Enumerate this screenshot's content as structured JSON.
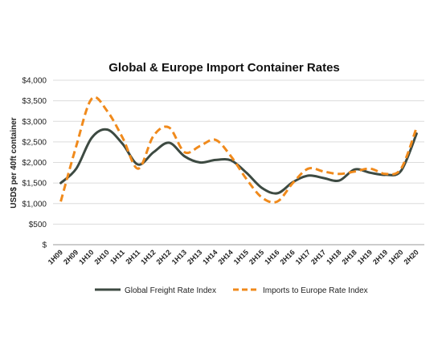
{
  "chart_data": {
    "type": "line",
    "title": "Global & Europe Import Container Rates",
    "xlabel": "",
    "ylabel": "USD$ per 40ft container",
    "ylim": [
      0,
      4000
    ],
    "yticks": [
      "$",
      "$500",
      "$1,000",
      "$1,500",
      "$2,000",
      "$2,500",
      "$3,000",
      "$3,500",
      "$4,000"
    ],
    "ytick_values": [
      0,
      500,
      1000,
      1500,
      2000,
      2500,
      3000,
      3500,
      4000
    ],
    "categories": [
      "1H09",
      "2H09",
      "1H10",
      "2H10",
      "1H11",
      "2H11",
      "1H12",
      "2H12",
      "1H13",
      "2H13",
      "1H14",
      "2H14",
      "1H15",
      "2H15",
      "1H16",
      "2H16",
      "1H17",
      "2H17",
      "1H18",
      "2H18",
      "1H19",
      "2H19",
      "1H20",
      "2H20"
    ],
    "series": [
      {
        "name": "Global Freight Rate Index",
        "color": "#3d4a42",
        "style": "solid",
        "values": [
          1500,
          1850,
          2600,
          2800,
          2450,
          1950,
          2250,
          2480,
          2150,
          2000,
          2060,
          2050,
          1750,
          1380,
          1250,
          1520,
          1680,
          1620,
          1560,
          1830,
          1750,
          1700,
          1800,
          2700
        ]
      },
      {
        "name": "Imports to Europe Rate Index",
        "color": "#f08a1c",
        "style": "dashed",
        "values": [
          1050,
          2400,
          3550,
          3250,
          2600,
          1850,
          2650,
          2850,
          2250,
          2400,
          2550,
          2150,
          1600,
          1150,
          1050,
          1500,
          1850,
          1780,
          1720,
          1780,
          1850,
          1720,
          1850,
          2850
        ]
      }
    ],
    "grid": true,
    "legend": "bottom"
  }
}
